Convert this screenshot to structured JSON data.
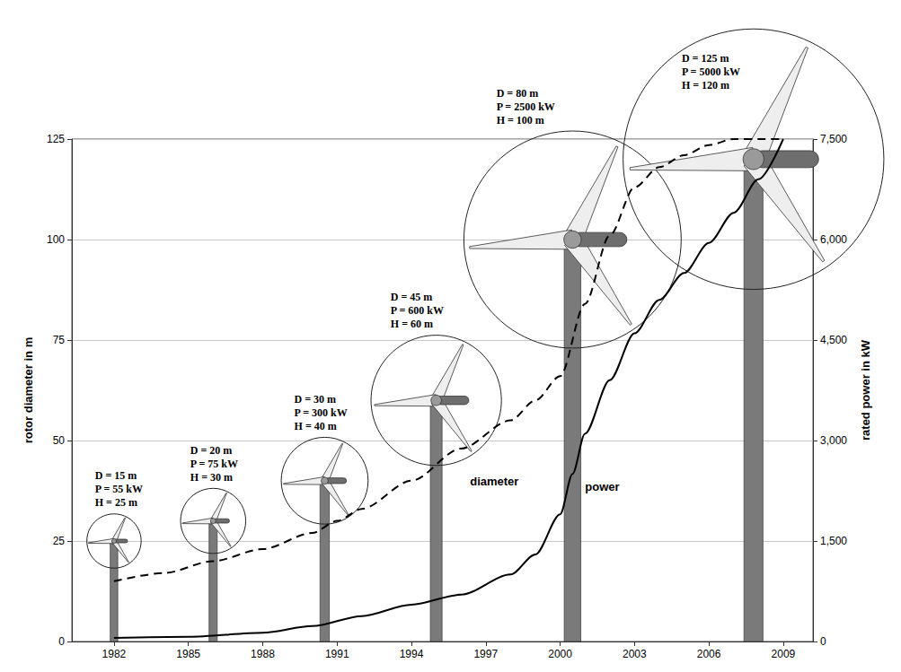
{
  "chart_data": {
    "type": "line",
    "xlim": [
      1980.3,
      2010.2
    ],
    "xticks": [
      1982,
      1985,
      1988,
      1991,
      1994,
      1997,
      2000,
      2003,
      2006,
      2009
    ],
    "ylabel": "rotor diameter in m",
    "ylim": [
      0,
      125
    ],
    "yticks": [
      0,
      25,
      50,
      75,
      100,
      125
    ],
    "y2label": "rated power in kW",
    "y2lim": [
      0,
      7500
    ],
    "y2ticks": [
      0,
      1500,
      3000,
      4500,
      6000,
      7500
    ],
    "grid": true,
    "series": [
      {
        "name": "diameter",
        "color": "#000000",
        "line_style": "dashed",
        "x": [
          1982,
          1984,
          1986,
          1988,
          1990,
          1991,
          1992,
          1994,
          1996,
          1998,
          1999,
          2000,
          2001,
          2002,
          2003,
          2004,
          2005,
          2006,
          2007,
          2008,
          2009
        ],
        "values": [
          15,
          17,
          20,
          23,
          27,
          30,
          33,
          40,
          48,
          55,
          60,
          66,
          84,
          101,
          113,
          118,
          121,
          123.5,
          125,
          125,
          125
        ]
      },
      {
        "name": "power",
        "color": "#000000",
        "line_style": "solid",
        "axis": "y2",
        "x": [
          1982,
          1985,
          1988,
          1990,
          1992,
          1994,
          1996,
          1998,
          1999,
          2000,
          2000.5,
          2001,
          2002,
          2003,
          2004,
          2005,
          2006,
          2007,
          2008,
          2009
        ],
        "values": [
          55,
          70,
          130,
          230,
          380,
          550,
          700,
          1000,
          1300,
          1900,
          2500,
          3100,
          3900,
          4600,
          5100,
          5500,
          5950,
          6400,
          6900,
          7500
        ]
      }
    ],
    "towers": {
      "color": "#7a7a7a",
      "items": [
        {
          "x": 1982,
          "height": 25,
          "text": [
            "D = 15 m",
            "P = 55 kW",
            "H = 25 m"
          ]
        },
        {
          "x": 1986,
          "height": 30,
          "text": [
            "D = 20 m",
            "P = 75 kW",
            "H = 30 m"
          ]
        },
        {
          "x": 1990.5,
          "height": 40,
          "text": [
            "D = 30 m",
            "P = 300 kW",
            "H = 40 m"
          ]
        },
        {
          "x": 1995,
          "height": 60,
          "text": [
            "D = 45 m",
            "P = 600 kW",
            "H = 60 m"
          ]
        },
        {
          "x": 2000.5,
          "height": 100,
          "text": [
            "D = 80 m",
            "P = 2500 kW",
            "H = 100 m"
          ]
        },
        {
          "x": 2007.8,
          "height": 120,
          "text": [
            "D = 125 m",
            "P = 5000 kW",
            "H = 120 m"
          ]
        }
      ]
    }
  }
}
